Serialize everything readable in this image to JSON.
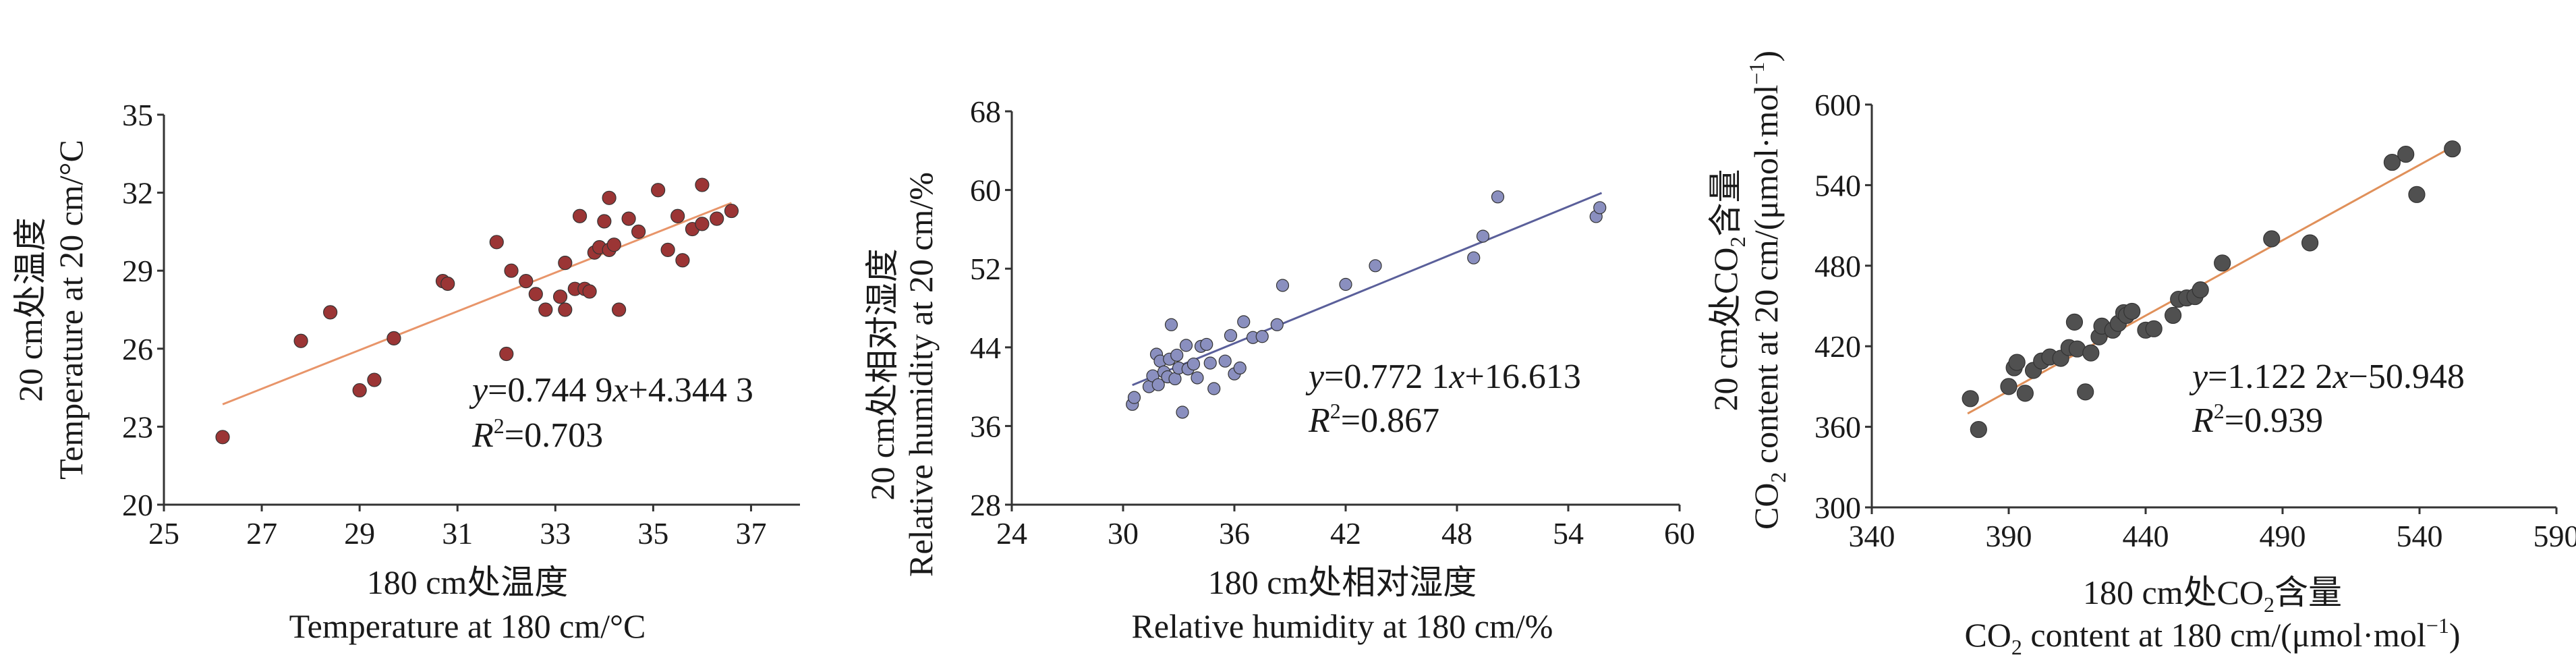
{
  "chart_data": [
    {
      "type": "scatter",
      "panel": "temperature",
      "xlabel_cn": "180 cm处温度",
      "xlabel_en": "Temperature at 180 cm/°C",
      "ylabel_cn": "20 cm处温度",
      "ylabel_en": "Temperature at 20 cm/°C",
      "xlim": [
        25,
        38
      ],
      "ylim": [
        20,
        35
      ],
      "xticks": [
        25,
        27,
        29,
        31,
        33,
        35,
        37
      ],
      "yticks": [
        20,
        23,
        26,
        29,
        32,
        35
      ],
      "equation": {
        "y": "y",
        "eq": "=0.744 9",
        "x": "x",
        "rest": "+4.344 3"
      },
      "r2": {
        "r": "R",
        "sup": "2",
        "val": "=0.703"
      },
      "marker_color": "#9b3535",
      "line_color": "#e8956a",
      "fit": {
        "slope": 0.7449,
        "intercept": 4.3443,
        "x_range": [
          26.2,
          36.6
        ]
      },
      "points": [
        [
          26.2,
          22.6
        ],
        [
          27.8,
          26.3
        ],
        [
          28.4,
          27.4
        ],
        [
          29.0,
          24.4
        ],
        [
          29.3,
          24.8
        ],
        [
          29.7,
          26.4
        ],
        [
          30.7,
          28.6
        ],
        [
          30.8,
          28.5
        ],
        [
          31.8,
          30.1
        ],
        [
          32.0,
          25.8
        ],
        [
          32.1,
          29.0
        ],
        [
          32.4,
          28.6
        ],
        [
          32.6,
          28.1
        ],
        [
          32.8,
          27.5
        ],
        [
          33.1,
          28.0
        ],
        [
          33.2,
          29.3
        ],
        [
          33.2,
          27.5
        ],
        [
          33.4,
          28.3
        ],
        [
          33.5,
          31.1
        ],
        [
          33.6,
          28.3
        ],
        [
          33.7,
          28.2
        ],
        [
          33.8,
          29.7
        ],
        [
          33.9,
          29.9
        ],
        [
          34.0,
          30.9
        ],
        [
          34.1,
          31.8
        ],
        [
          34.1,
          29.8
        ],
        [
          34.2,
          30.0
        ],
        [
          34.3,
          27.5
        ],
        [
          34.5,
          31.0
        ],
        [
          34.7,
          30.5
        ],
        [
          35.1,
          32.1
        ],
        [
          35.3,
          29.8
        ],
        [
          35.5,
          31.1
        ],
        [
          35.6,
          29.4
        ],
        [
          35.8,
          30.6
        ],
        [
          36.0,
          32.3
        ],
        [
          36.0,
          30.8
        ],
        [
          36.3,
          31.0
        ],
        [
          36.6,
          31.3
        ]
      ]
    },
    {
      "type": "scatter",
      "panel": "humidity",
      "xlabel_cn": "180 cm处相对湿度",
      "xlabel_en": "Relative humidity at 180 cm/%",
      "ylabel_cn": "20 cm处相对湿度",
      "ylabel_en": "Relative humidity at 20 cm/%",
      "xlim": [
        24,
        60
      ],
      "ylim": [
        28,
        68
      ],
      "xticks": [
        24,
        30,
        36,
        42,
        48,
        54,
        60
      ],
      "yticks": [
        28,
        36,
        44,
        52,
        60,
        68
      ],
      "equation": {
        "y": "y",
        "eq": "=0.772 1",
        "x": "x",
        "rest": "+16.613"
      },
      "r2": {
        "r": "R",
        "sup": "2",
        "val": "=0.867"
      },
      "marker_color": "#8a8fbf",
      "line_color": "#5a5f9a",
      "fit": {
        "slope": 0.7721,
        "intercept": 16.613,
        "x_range": [
          30.5,
          55.8
        ]
      },
      "points": [
        [
          30.5,
          38.2
        ],
        [
          30.6,
          38.9
        ],
        [
          31.4,
          40.0
        ],
        [
          31.6,
          41.1
        ],
        [
          31.8,
          43.3
        ],
        [
          31.9,
          40.2
        ],
        [
          32.0,
          42.6
        ],
        [
          32.2,
          41.5
        ],
        [
          32.4,
          41.0
        ],
        [
          32.5,
          42.8
        ],
        [
          32.6,
          46.3
        ],
        [
          32.8,
          40.8
        ],
        [
          32.9,
          43.2
        ],
        [
          33.0,
          41.9
        ],
        [
          33.2,
          37.4
        ],
        [
          33.4,
          44.2
        ],
        [
          33.5,
          41.8
        ],
        [
          33.8,
          42.3
        ],
        [
          34.0,
          40.9
        ],
        [
          34.2,
          44.1
        ],
        [
          34.5,
          44.3
        ],
        [
          34.7,
          42.4
        ],
        [
          34.9,
          39.8
        ],
        [
          35.5,
          42.6
        ],
        [
          35.8,
          45.2
        ],
        [
          36.0,
          41.3
        ],
        [
          36.3,
          41.9
        ],
        [
          36.5,
          46.6
        ],
        [
          37.0,
          45.0
        ],
        [
          37.5,
          45.1
        ],
        [
          38.3,
          46.3
        ],
        [
          38.6,
          50.3
        ],
        [
          42.0,
          50.4
        ],
        [
          43.6,
          52.3
        ],
        [
          48.9,
          53.1
        ],
        [
          49.4,
          55.3
        ],
        [
          50.2,
          59.3
        ],
        [
          55.5,
          57.3
        ],
        [
          55.7,
          58.2
        ]
      ]
    },
    {
      "type": "scatter",
      "panel": "co2",
      "xlabel_cn_a": "180 cm处CO",
      "xlabel_cn_sub": "2",
      "xlabel_cn_b": "含量",
      "xlabel_en_a": "CO",
      "xlabel_en_sub": "2",
      "xlabel_en_b": " content at 180 cm/(μmol·mol",
      "xlabel_en_sup": "−1",
      "xlabel_en_c": ")",
      "ylabel_cn_a": "20 cm处CO",
      "ylabel_cn_sub": "2",
      "ylabel_cn_b": "含量",
      "ylabel_en_a": "CO",
      "ylabel_en_sub": "2",
      "ylabel_en_b": " content at 20 cm/(μmol·mol",
      "ylabel_en_sup": "−1",
      "ylabel_en_c": ")",
      "xlim": [
        340,
        590
      ],
      "ylim": [
        300,
        600
      ],
      "xticks": [
        340,
        390,
        440,
        490,
        540,
        590
      ],
      "yticks": [
        300,
        360,
        420,
        480,
        540,
        600
      ],
      "equation": {
        "y": "y",
        "eq": "=1.122 2",
        "x": "x",
        "rest": "−50.948"
      },
      "r2": {
        "r": "R",
        "sup": "2",
        "val": "=0.939"
      },
      "marker_color": "#505050",
      "line_color": "#e0905a",
      "fit": {
        "slope": 1.1222,
        "intercept": -50.948,
        "x_range": [
          375,
          552
        ]
      },
      "points": [
        [
          376,
          381
        ],
        [
          379,
          358
        ],
        [
          390,
          390
        ],
        [
          392,
          404
        ],
        [
          393,
          408
        ],
        [
          396,
          385
        ],
        [
          399,
          402
        ],
        [
          402,
          409
        ],
        [
          405,
          412
        ],
        [
          409,
          411
        ],
        [
          412,
          419
        ],
        [
          414,
          438
        ],
        [
          415,
          418
        ],
        [
          418,
          386
        ],
        [
          420,
          415
        ],
        [
          423,
          427
        ],
        [
          424,
          435
        ],
        [
          428,
          432
        ],
        [
          430,
          437
        ],
        [
          432,
          445
        ],
        [
          433,
          443
        ],
        [
          435,
          446
        ],
        [
          440,
          432
        ],
        [
          443,
          433
        ],
        [
          450,
          443
        ],
        [
          452,
          455
        ],
        [
          455,
          456
        ],
        [
          458,
          457
        ],
        [
          460,
          462
        ],
        [
          468,
          482
        ],
        [
          486,
          500
        ],
        [
          500,
          497
        ],
        [
          530,
          557
        ],
        [
          535,
          563
        ],
        [
          539,
          533
        ],
        [
          552,
          567
        ]
      ]
    }
  ]
}
